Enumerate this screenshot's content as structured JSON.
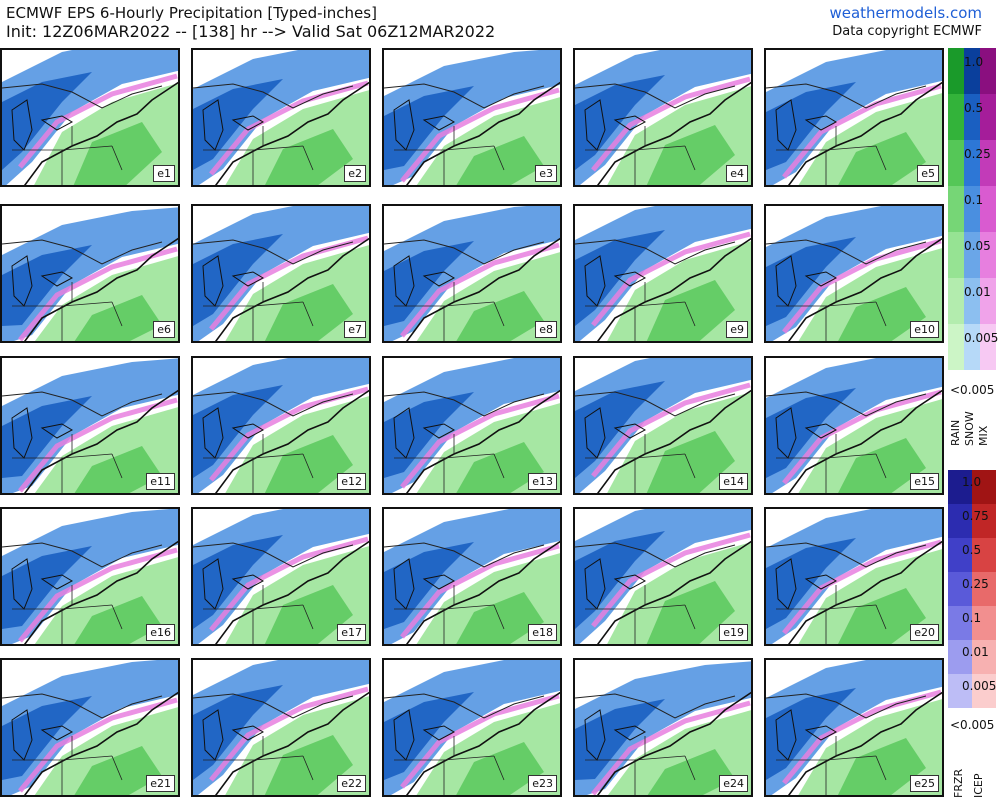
{
  "header": {
    "title": "ECMWF EPS 6-Hourly Precipitation [Typed-inches]",
    "init_line": "Init: 12Z06MAR2022 -- [138] hr --> Valid Sat 06Z12MAR2022",
    "site": "weathermodels.com",
    "copyright": "Data copyright ECMWF"
  },
  "members": [
    "e1",
    "e2",
    "e3",
    "e4",
    "e5",
    "e6",
    "e7",
    "e8",
    "e9",
    "e10",
    "e11",
    "e12",
    "e13",
    "e14",
    "e15",
    "e16",
    "e17",
    "e18",
    "e19",
    "e20",
    "e21",
    "e22",
    "e23",
    "e24",
    "e25"
  ],
  "legend_top": {
    "values": [
      "1.0",
      "0.5",
      "0.25",
      "0.1",
      "0.05",
      "0.01",
      "0.005"
    ],
    "below_label": "<0.005",
    "types": [
      "RAIN",
      "SNOW",
      "MIX"
    ],
    "rain_colors": [
      "#1a9a2a",
      "#33b33a",
      "#55c757",
      "#76d676",
      "#96e393",
      "#b3ecae",
      "#ccf5c6"
    ],
    "snow_colors": [
      "#0a3f9c",
      "#1a5fc1",
      "#2d77d6",
      "#4a8fe0",
      "#6aa6e8",
      "#8cbff0",
      "#b6d9f8"
    ],
    "mix_colors": [
      "#8a0f7f",
      "#a51d9a",
      "#c23bb8",
      "#d95bd0",
      "#e77fdf",
      "#f0a3ea",
      "#f7c9f3"
    ]
  },
  "legend_bottom": {
    "values": [
      "1.0",
      "0.75",
      "0.5",
      "0.25",
      "0.1",
      "0.01",
      "0.005"
    ],
    "below_label": "<0.005",
    "types": [
      "FRZR",
      "ICEP"
    ],
    "frzr_colors": [
      "#1c1c8f",
      "#2c2cb0",
      "#4040c8",
      "#5a5ad9",
      "#7a7ae6",
      "#9c9cef",
      "#bdbdf6"
    ],
    "icep_colors": [
      "#a01414",
      "#c02626",
      "#d84343",
      "#e86a6a",
      "#f28f8f",
      "#f7b1b1",
      "#fbcdcd"
    ]
  }
}
